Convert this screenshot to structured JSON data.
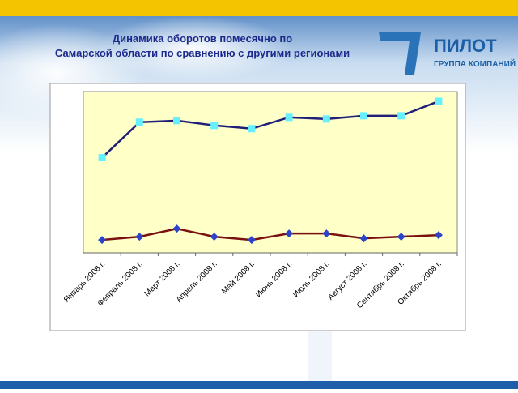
{
  "chart_data": {
    "type": "line",
    "title": "Динамика оборотов помесячно по\nСамарской области по сравнению с другими регионами",
    "categories": [
      "Январь 2008 г.",
      "Февраль 2008 г.",
      "Март 2008 г.",
      "Апрель 2008 г.",
      "Май 2008 г.",
      "Июнь 2008 г.",
      "Июль 2008 г.",
      "Август 2008 г.",
      "Сентябрь 2008 г.",
      "Октябрь 2008 г."
    ],
    "series": [
      {
        "color": "#1f1f7a",
        "marker": "square",
        "marker_color": "#66f0ff",
        "values": [
          59,
          81,
          82,
          79,
          77,
          84,
          83,
          85,
          85,
          94
        ]
      },
      {
        "color": "#7a1010",
        "marker": "diamond",
        "marker_color": "#2e44c8",
        "values": [
          8,
          10,
          15,
          10,
          8,
          12,
          12,
          9,
          10,
          11
        ]
      }
    ],
    "ylim": [
      0,
      100
    ],
    "plot_background": "#ffffc8"
  },
  "logo": {
    "name": "ПИЛОТ",
    "subtitle": "ГРУППА КОМПАНИЙ"
  }
}
